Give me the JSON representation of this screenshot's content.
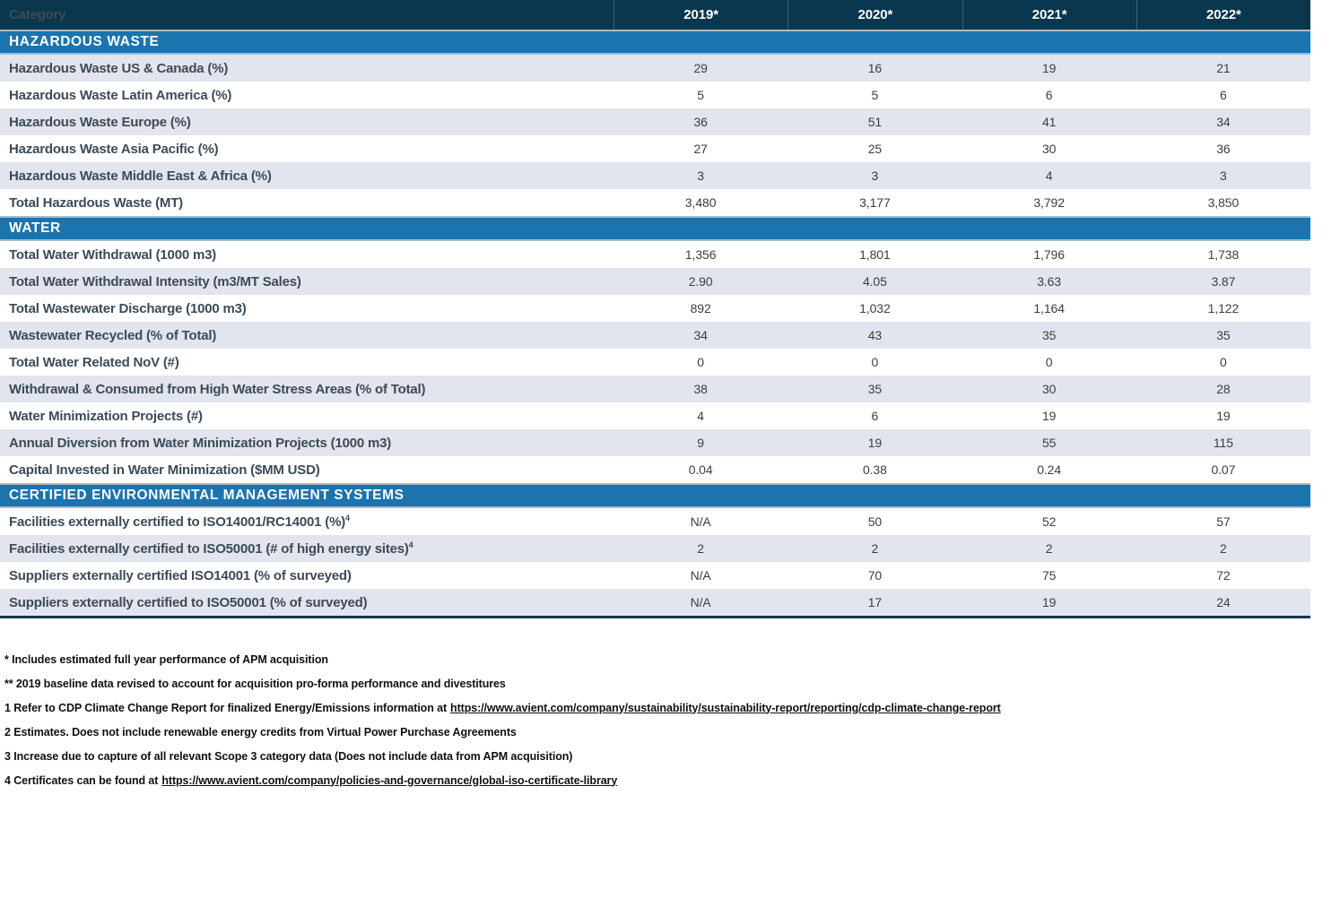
{
  "table": {
    "header": {
      "category_label": "Category",
      "years": [
        "2019*",
        "2020*",
        "2021*",
        "2022*"
      ]
    },
    "sections": [
      {
        "title": "HAZARDOUS WASTE",
        "shaded_first": true,
        "rows": [
          {
            "label": "Hazardous Waste US & Canada (%)",
            "values": [
              "29",
              "16",
              "19",
              "21"
            ]
          },
          {
            "label": "Hazardous Waste Latin America (%)",
            "values": [
              "5",
              "5",
              "6",
              "6"
            ]
          },
          {
            "label": "Hazardous Waste Europe (%)",
            "values": [
              "36",
              "51",
              "41",
              "34"
            ]
          },
          {
            "label": "Hazardous Waste Asia Pacific (%)",
            "values": [
              "27",
              "25",
              "30",
              "36"
            ]
          },
          {
            "label": "Hazardous Waste Middle East & Africa (%)",
            "values": [
              "3",
              "3",
              "4",
              "3"
            ]
          },
          {
            "label": "Total Hazardous Waste (MT)",
            "values": [
              "3,480",
              "3,177",
              "3,792",
              "3,850"
            ]
          }
        ]
      },
      {
        "title": "WATER",
        "shaded_first": false,
        "rows": [
          {
            "label": "Total Water Withdrawal (1000 m3)",
            "values": [
              "1,356",
              "1,801",
              "1,796",
              "1,738"
            ]
          },
          {
            "label": "Total Water Withdrawal Intensity (m3/MT Sales)",
            "values": [
              "2.90",
              "4.05",
              "3.63",
              "3.87"
            ]
          },
          {
            "label": "Total Wastewater Discharge (1000 m3)",
            "values": [
              "892",
              "1,032",
              "1,164",
              "1,122"
            ]
          },
          {
            "label": "Wastewater Recycled (% of Total)",
            "values": [
              "34",
              "43",
              "35",
              "35"
            ]
          },
          {
            "label": "Total Water Related NoV (#)",
            "values": [
              "0",
              "0",
              "0",
              "0"
            ]
          },
          {
            "label": "Withdrawal & Consumed from High Water Stress Areas (% of Total)",
            "values": [
              "38",
              "35",
              "30",
              "28"
            ]
          },
          {
            "label": "Water Minimization Projects (#)",
            "values": [
              "4",
              "6",
              "19",
              "19"
            ]
          },
          {
            "label": "Annual Diversion from Water Minimization Projects (1000 m3)",
            "values": [
              "9",
              "19",
              "55",
              "115"
            ]
          },
          {
            "label": "Capital Invested in Water Minimization ($MM USD)",
            "values": [
              "0.04",
              "0.38",
              "0.24",
              "0.07"
            ]
          }
        ]
      },
      {
        "title": "CERTIFIED ENVIRONMENTAL MANAGEMENT SYSTEMS",
        "shaded_first": false,
        "rows": [
          {
            "label": "Facilities externally certified to ISO14001/RC14001 (%)",
            "sup": "4",
            "values": [
              "N/A",
              "50",
              "52",
              "57"
            ]
          },
          {
            "label": "Facilities externally certified to ISO50001 (# of high energy sites)",
            "sup": "4",
            "values": [
              "2",
              "2",
              "2",
              "2"
            ]
          },
          {
            "label": "Suppliers externally certified ISO14001 (% of surveyed)",
            "values": [
              "N/A",
              "70",
              "75",
              "72"
            ]
          },
          {
            "label": "Suppliers externally certified to ISO50001 (% of surveyed)",
            "values": [
              "N/A",
              "17",
              "19",
              "24"
            ]
          }
        ]
      }
    ]
  },
  "footnotes": [
    {
      "text": "* Includes estimated full year performance of APM acquisition"
    },
    {
      "text": "** 2019 baseline data revised to account for acquisition pro-forma performance and divestitures"
    },
    {
      "text": "1 Refer to CDP Climate Change Report for finalized Energy/Emissions information at",
      "link": "https://www.avient.com/company/sustainability/sustainability-report/reporting/cdp-climate-change-report"
    },
    {
      "text": "2 Estimates. Does not include renewable energy credits from Virtual Power Purchase Agreements"
    },
    {
      "text": "3 Increase due to capture of all relevant Scope 3 category data (Does not include data from APM acquisition)"
    },
    {
      "text": "4 Certificates can be found at",
      "link": "https://www.avient.com/company/policies-and-governance/global-iso-certificate-library"
    }
  ],
  "colors": {
    "header_navy": "#0a374d",
    "section_blue": "#1b74ae",
    "shaded_row": "#e2e4ee",
    "band_separator": "#a9bcc8"
  }
}
